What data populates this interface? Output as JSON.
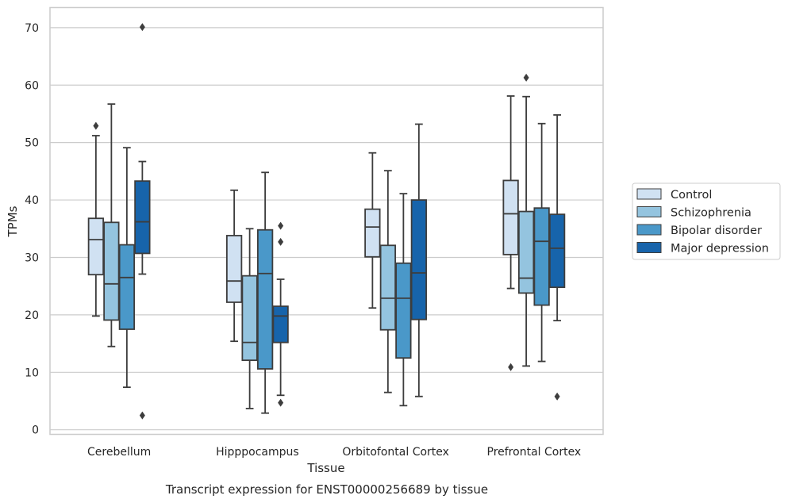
{
  "chart_data": {
    "type": "boxplot",
    "caption": "Transcript expression for ENST00000256689 by tissue",
    "xlabel": "Tissue",
    "ylabel": "TPMs",
    "ylim": [
      -0.8,
      73.5
    ],
    "yticks": [
      0,
      10,
      20,
      30,
      40,
      50,
      60,
      70
    ],
    "grid": "horizontal",
    "legend_position": "right",
    "categories": [
      "Cerebellum",
      "Hipppocampus",
      "Orbitofontal Cortex",
      "Prefrontal Cortex"
    ],
    "series": [
      {
        "name": "Control",
        "color": "#d0e1f2",
        "boxes": [
          {
            "whislo": 19.8,
            "q1": 27.0,
            "med": 33.1,
            "q3": 36.8,
            "whishi": 51.2,
            "fliers": [
              52.9
            ]
          },
          {
            "whislo": 15.4,
            "q1": 22.2,
            "med": 25.9,
            "q3": 33.8,
            "whishi": 41.7,
            "fliers": []
          },
          {
            "whislo": 21.2,
            "q1": 30.1,
            "med": 35.3,
            "q3": 38.4,
            "whishi": 48.2,
            "fliers": []
          },
          {
            "whislo": 24.6,
            "q1": 30.5,
            "med": 37.6,
            "q3": 43.4,
            "whishi": 58.1,
            "fliers": [
              10.9
            ]
          }
        ]
      },
      {
        "name": "Schizophrenia",
        "color": "#94c4df",
        "boxes": [
          {
            "whislo": 14.5,
            "q1": 19.1,
            "med": 25.4,
            "q3": 36.1,
            "whishi": 56.7,
            "fliers": []
          },
          {
            "whislo": 3.7,
            "q1": 12.1,
            "med": 15.2,
            "q3": 26.8,
            "whishi": 35.0,
            "fliers": []
          },
          {
            "whislo": 6.5,
            "q1": 17.4,
            "med": 22.9,
            "q3": 32.1,
            "whishi": 45.1,
            "fliers": []
          },
          {
            "whislo": 11.1,
            "q1": 23.8,
            "med": 26.4,
            "q3": 38.0,
            "whishi": 58.0,
            "fliers": [
              61.3
            ]
          }
        ]
      },
      {
        "name": "Bipolar disorder",
        "color": "#4a98c9",
        "boxes": [
          {
            "whislo": 7.4,
            "q1": 17.5,
            "med": 26.5,
            "q3": 32.2,
            "whishi": 49.1,
            "fliers": []
          },
          {
            "whislo": 2.9,
            "q1": 10.6,
            "med": 27.2,
            "q3": 34.8,
            "whishi": 44.8,
            "fliers": []
          },
          {
            "whislo": 4.2,
            "q1": 12.5,
            "med": 22.9,
            "q3": 29.0,
            "whishi": 41.1,
            "fliers": []
          },
          {
            "whislo": 11.9,
            "q1": 21.7,
            "med": 32.8,
            "q3": 38.6,
            "whishi": 53.3,
            "fliers": []
          }
        ]
      },
      {
        "name": "Major depression",
        "color": "#1764ab",
        "boxes": [
          {
            "whislo": 27.1,
            "q1": 30.7,
            "med": 36.2,
            "q3": 43.3,
            "whishi": 46.7,
            "fliers": [
              70.1,
              2.5
            ]
          },
          {
            "whislo": 6.0,
            "q1": 15.2,
            "med": 19.8,
            "q3": 21.5,
            "whishi": 26.2,
            "fliers": [
              35.5,
              32.7,
              4.7
            ]
          },
          {
            "whislo": 5.8,
            "q1": 19.2,
            "med": 27.3,
            "q3": 40.0,
            "whishi": 53.2,
            "fliers": []
          },
          {
            "whislo": 19.0,
            "q1": 24.8,
            "med": 31.6,
            "q3": 37.5,
            "whishi": 54.8,
            "fliers": [
              5.8
            ]
          }
        ]
      }
    ]
  }
}
